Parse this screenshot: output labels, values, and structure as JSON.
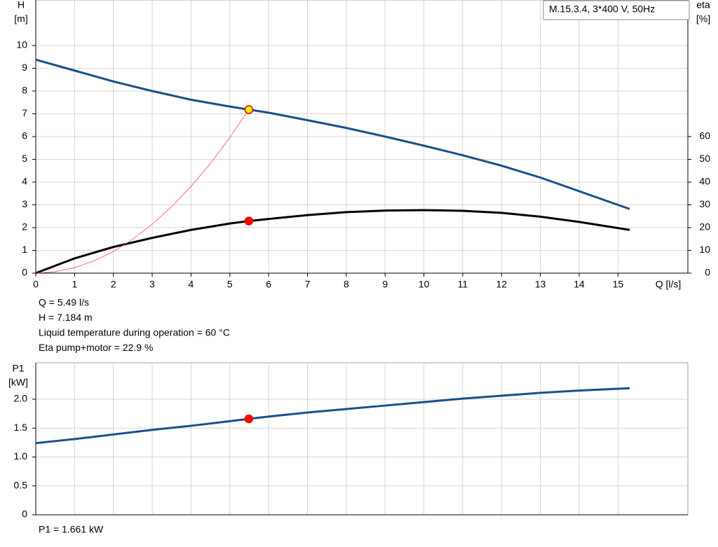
{
  "chart_data": [
    {
      "type": "line",
      "info_box": "M.15.3.4, 3*400 V, 50Hz",
      "xlabel": "Q [l/s]",
      "ylabel": [
        "H",
        "[m]"
      ],
      "y2label": [
        "eta",
        "[%]"
      ],
      "xlim": [
        0,
        16.8
      ],
      "ylim": [
        0,
        12
      ],
      "y2lim": [
        0,
        120
      ],
      "xticks": [
        0,
        1,
        2,
        3,
        4,
        5,
        6,
        7,
        8,
        9,
        10,
        11,
        12,
        13,
        14,
        15
      ],
      "yticks": [
        0,
        1,
        2,
        3,
        4,
        5,
        6,
        7,
        8,
        9,
        10
      ],
      "y2ticks": [
        0,
        10,
        20,
        30,
        40,
        50,
        60
      ],
      "grid": true,
      "series": [
        {
          "color": "#1a4f8a",
          "width": 3,
          "x": [
            0,
            1,
            2,
            3,
            4,
            5,
            5.49,
            6,
            7,
            8,
            9,
            10,
            11,
            12,
            13,
            14,
            15.3
          ],
          "values": [
            9.38,
            8.9,
            8.42,
            8.0,
            7.62,
            7.32,
            7.184,
            7.05,
            6.72,
            6.38,
            6.0,
            5.6,
            5.18,
            4.72,
            4.2,
            3.6,
            2.82
          ]
        },
        {
          "color": "#000000",
          "width": 3,
          "axis": "y2",
          "x": [
            0,
            1,
            2,
            3,
            4,
            5,
            5.49,
            6,
            7,
            8,
            9,
            10,
            11,
            12,
            13,
            14,
            15.3
          ],
          "values": [
            0,
            6.5,
            11.5,
            15.5,
            19,
            21.8,
            22.9,
            23.8,
            25.5,
            26.8,
            27.5,
            27.7,
            27.4,
            26.5,
            24.8,
            22.5,
            19
          ]
        },
        {
          "color": "#ff5050",
          "width": 0.8,
          "x": [
            0,
            0.5,
            1,
            1.5,
            2,
            2.5,
            3,
            3.5,
            4,
            4.5,
            5,
            5.49
          ],
          "values": [
            0,
            0.06,
            0.24,
            0.54,
            0.95,
            1.49,
            2.15,
            2.92,
            3.81,
            4.82,
            5.96,
            7.184
          ]
        }
      ],
      "markers": [
        {
          "x": 5.49,
          "y": 7.184,
          "fill": "#ffee00",
          "stroke": "#e00000"
        },
        {
          "x": 5.49,
          "y": 22.9,
          "axis": "y2",
          "fill": "#ff0000",
          "stroke": "#ff0000"
        }
      ],
      "annotations": [
        "Q = 5.49 l/s",
        "H = 7.184 m",
        "Liquid temperature during operation = 60 °C",
        "Eta pump+motor = 22.9 %"
      ]
    },
    {
      "type": "line",
      "ylabel": [
        "P1",
        "[kW]"
      ],
      "xlim": [
        0,
        16.8
      ],
      "ylim": [
        0,
        2.63
      ],
      "xgrid": [
        0,
        1,
        2,
        3,
        4,
        5,
        6,
        7,
        8,
        9,
        10,
        11,
        12,
        13,
        14,
        15
      ],
      "yticks": [
        0,
        0.5,
        {
          "value": 1,
          "label": "1.0"
        },
        1.5,
        {
          "value": 2,
          "label": "2.0"
        }
      ],
      "grid": true,
      "series": [
        {
          "color": "#1a4f8a",
          "width": 3,
          "x": [
            0,
            1,
            2,
            3,
            4,
            5,
            5.49,
            6,
            7,
            8,
            9,
            10,
            11,
            12,
            13,
            14,
            15.3
          ],
          "values": [
            1.24,
            1.31,
            1.39,
            1.47,
            1.54,
            1.62,
            1.661,
            1.7,
            1.77,
            1.83,
            1.89,
            1.95,
            2.01,
            2.06,
            2.11,
            2.15,
            2.19
          ]
        }
      ],
      "markers": [
        {
          "x": 5.49,
          "y": 1.661,
          "fill": "#ff0000",
          "stroke": "#ff0000"
        }
      ],
      "annotations": [
        "P1 = 1.661 kW"
      ]
    }
  ]
}
